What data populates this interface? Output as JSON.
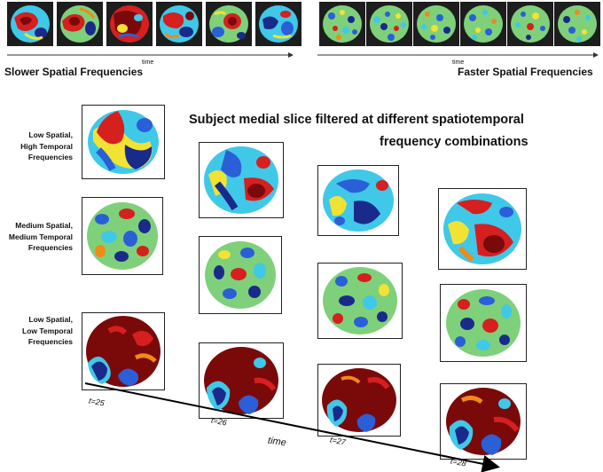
{
  "top_strips": {
    "slower": {
      "label": "Slower Spatial Frequencies",
      "time_label": "time"
    },
    "faster": {
      "label": "Faster Spatial Frequencies",
      "time_label": "time"
    }
  },
  "title": {
    "line1": "Subject medial slice filtered at different  spatiotemporal",
    "line2": "frequency combinations"
  },
  "rows": [
    {
      "lines": [
        "Low Spatial,",
        "High Temporal",
        "Frequencies"
      ]
    },
    {
      "lines": [
        "Medium Spatial,",
        "Medium Temporal",
        "Frequencies"
      ]
    },
    {
      "lines": [
        "Low Spatial,",
        "Low Temporal",
        "Frequencies"
      ]
    }
  ],
  "time_axis": {
    "label": "time",
    "ticks": [
      "t=25",
      "t=26",
      "t=27",
      "t=28"
    ]
  },
  "colors": {
    "dark_red": "#7a0a0a",
    "red": "#d61f1f",
    "orange": "#f08a18",
    "yellow": "#f2e233",
    "green": "#7fd07a",
    "cyan": "#40c8e8",
    "blue": "#2a5fd8",
    "dark_blue": "#1a2a8a",
    "thumb_bg": "#1d1d1d"
  }
}
